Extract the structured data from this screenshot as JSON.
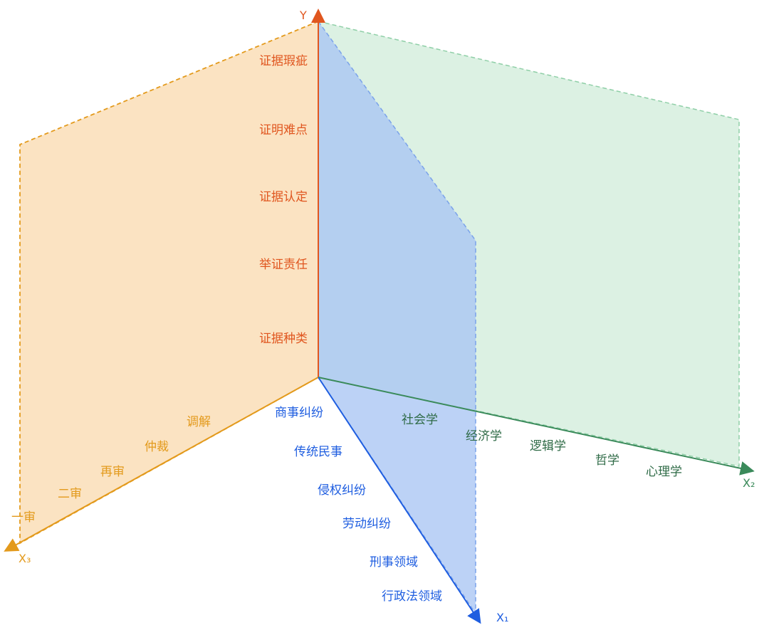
{
  "axes": {
    "y": {
      "label": "Y",
      "color": "#e0561f"
    },
    "x1": {
      "label": "X₁",
      "color": "#1f5ee0"
    },
    "x2": {
      "label": "X₂",
      "color": "#3a8a5a"
    },
    "x3": {
      "label": "X₃",
      "color": "#e39a1c"
    }
  },
  "y_items": [
    "证据瑕疵",
    "证明难点",
    "证据认定",
    "举证责任",
    "证据种类"
  ],
  "x1_items": [
    "商事纠纷",
    "传统民事",
    "侵权纠纷",
    "劳动纠纷",
    "刑事领域",
    "行政法领域"
  ],
  "x2_items": [
    "社会学",
    "经济学",
    "逻辑学",
    "哲学",
    "心理学"
  ],
  "x3_items": [
    "调解",
    "仲裁",
    "再审",
    "二审",
    "一审"
  ],
  "colors": {
    "orange_fill": "#fbe3c2",
    "orange_edge": "#e39a1c",
    "green_fill": "#d8efe0",
    "green_edge": "#8fcfa7",
    "blue_fill": "#b9d0f6",
    "blue_edge": "#7aa2ea"
  }
}
